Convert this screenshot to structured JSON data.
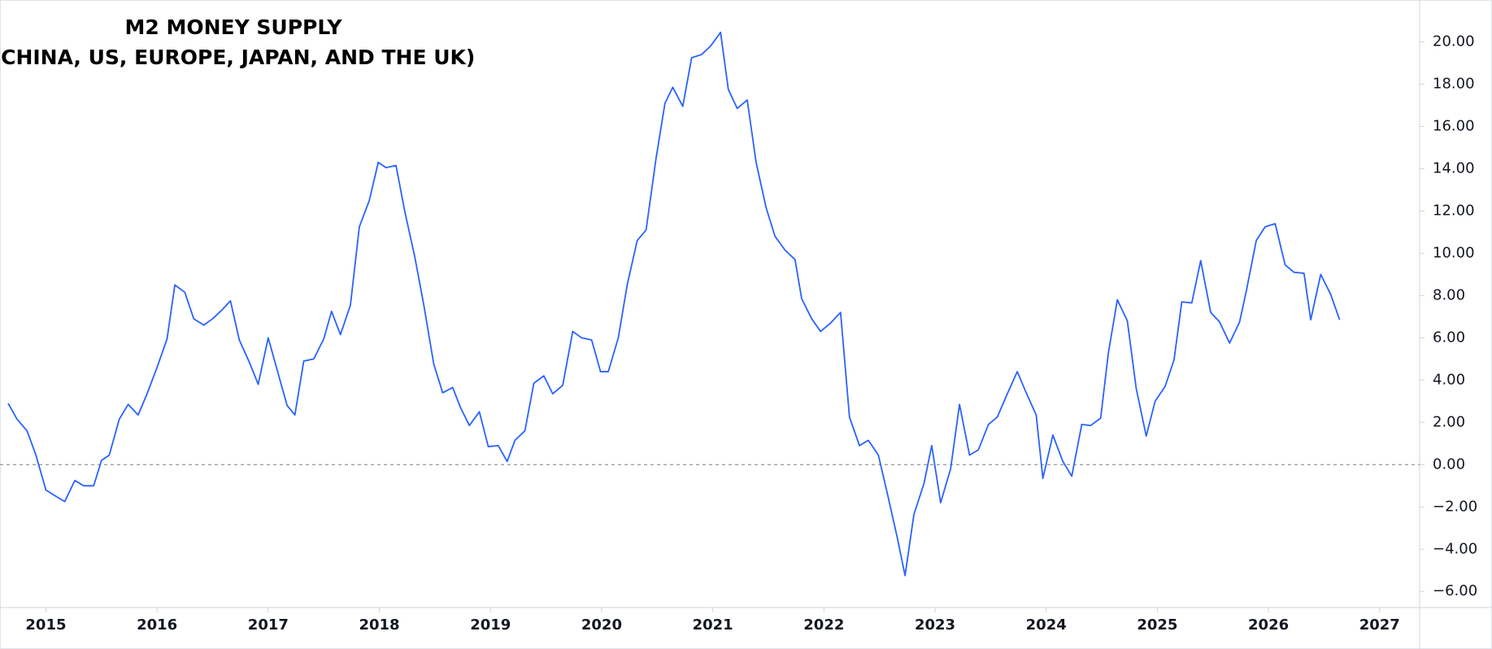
{
  "chart_data": {
    "type": "line",
    "title": "M2 MONEY SUPPLY",
    "subtitle": "(CHINA, US, EUROPE, JAPAN, AND THE UK)",
    "x": [
      2014.66,
      2014.74,
      2014.83,
      2014.91,
      2015.0,
      2015.09,
      2015.17,
      2015.26,
      2015.34,
      2015.43,
      2015.5,
      2015.57,
      2015.66,
      2015.74,
      2015.83,
      2015.91,
      2016.0,
      2016.09,
      2016.16,
      2016.25,
      2016.33,
      2016.42,
      2016.5,
      2016.59,
      2016.66,
      2016.74,
      2016.83,
      2016.91,
      2017.0,
      2017.09,
      2017.17,
      2017.24,
      2017.32,
      2017.41,
      2017.5,
      2017.57,
      2017.65,
      2017.74,
      2017.82,
      2017.91,
      2017.99,
      2018.06,
      2018.15,
      2018.23,
      2018.32,
      2018.4,
      2018.49,
      2018.57,
      2018.66,
      2018.73,
      2018.81,
      2018.9,
      2018.98,
      2019.07,
      2019.15,
      2019.22,
      2019.31,
      2019.39,
      2019.48,
      2019.56,
      2019.65,
      2019.74,
      2019.82,
      2019.91,
      2019.99,
      2020.06,
      2020.15,
      2020.23,
      2020.32,
      2020.4,
      2020.49,
      2020.57,
      2020.64,
      2020.73,
      2020.81,
      2020.9,
      2020.98,
      2021.07,
      2021.14,
      2021.22,
      2021.31,
      2021.39,
      2021.48,
      2021.56,
      2021.65,
      2021.74,
      2021.8,
      2021.89,
      2021.97,
      2022.06,
      2022.15,
      2022.23,
      2022.32,
      2022.4,
      2022.49,
      2022.57,
      2022.66,
      2022.73,
      2022.81,
      2022.9,
      2022.97,
      2023.05,
      2023.14,
      2023.22,
      2023.31,
      2023.39,
      2023.48,
      2023.56,
      2023.65,
      2023.74,
      2023.82,
      2023.91,
      2023.97,
      2024.06,
      2024.15,
      2024.23,
      2024.32,
      2024.4,
      2024.49,
      2024.56,
      2024.64,
      2024.73,
      2024.81,
      2024.9,
      2024.98,
      2025.07,
      2025.15,
      2025.22,
      2025.31,
      2025.39,
      2025.48,
      2025.56,
      2025.65,
      2025.74,
      2025.8,
      2025.89,
      2025.97,
      2026.06,
      2026.15,
      2026.23,
      2026.32,
      2026.38,
      2026.47,
      2026.56,
      2026.64
    ],
    "series": [
      {
        "color": "#2962ff",
        "values": [
          2.9,
          2.15,
          1.6,
          0.45,
          -1.2,
          -1.5,
          -1.75,
          -0.75,
          -1.0,
          -1.0,
          0.2,
          0.45,
          2.15,
          2.85,
          2.35,
          3.35,
          4.6,
          5.95,
          8.5,
          8.15,
          6.9,
          6.6,
          6.9,
          7.35,
          7.75,
          5.9,
          4.85,
          3.8,
          6.0,
          4.3,
          2.8,
          2.35,
          4.9,
          5.0,
          5.95,
          7.25,
          6.15,
          7.55,
          11.25,
          12.5,
          14.3,
          14.05,
          14.15,
          11.95,
          9.8,
          7.55,
          4.75,
          3.4,
          3.65,
          2.7,
          1.85,
          2.5,
          0.85,
          0.9,
          0.15,
          1.15,
          1.6,
          3.85,
          4.2,
          3.35,
          3.75,
          6.3,
          6.0,
          5.9,
          4.4,
          4.4,
          6.0,
          8.5,
          10.6,
          11.1,
          14.5,
          17.1,
          17.85,
          16.95,
          19.25,
          19.4,
          19.8,
          20.45,
          17.75,
          16.85,
          17.25,
          14.3,
          12.15,
          10.8,
          10.15,
          9.7,
          7.85,
          6.9,
          6.3,
          6.7,
          7.2,
          2.25,
          0.9,
          1.15,
          0.45,
          -1.35,
          -3.45,
          -5.25,
          -2.35,
          -0.9,
          0.9,
          -1.8,
          -0.2,
          2.85,
          0.45,
          0.7,
          1.9,
          2.25,
          3.35,
          4.4,
          3.4,
          2.35,
          -0.65,
          1.4,
          0.15,
          -0.55,
          1.9,
          1.85,
          2.2,
          5.3,
          7.8,
          6.8,
          3.6,
          1.35,
          3.0,
          3.7,
          4.95,
          7.7,
          7.65,
          9.65,
          7.2,
          6.75,
          5.75,
          6.75,
          8.2,
          10.6,
          11.25,
          11.4,
          9.45,
          9.1,
          9.05,
          6.85,
          9.0,
          8.05,
          6.85
        ]
      }
    ],
    "xlim": [
      2014.66,
      2027.36
    ],
    "xticks": [
      2015,
      2016,
      2017,
      2018,
      2019,
      2020,
      2021,
      2022,
      2023,
      2024,
      2025,
      2026,
      2027
    ],
    "ylim": [
      -6.76,
      21.98
    ],
    "yticks": [
      {
        "value": 20,
        "label": "20.00"
      },
      {
        "value": 18,
        "label": "18.00"
      },
      {
        "value": 16,
        "label": "16.00"
      },
      {
        "value": 14,
        "label": "14.00"
      },
      {
        "value": 12,
        "label": "12.00"
      },
      {
        "value": 10,
        "label": "10.00"
      },
      {
        "value": 8,
        "label": "8.00"
      },
      {
        "value": 6,
        "label": "6.00"
      },
      {
        "value": 4,
        "label": "4.00"
      },
      {
        "value": 2,
        "label": "2.00"
      },
      {
        "value": 0,
        "label": "0.00"
      },
      {
        "value": -2,
        "label": "−2.00"
      },
      {
        "value": -4,
        "label": "−4.00"
      },
      {
        "value": -6,
        "label": "−6.00"
      }
    ],
    "zero_line": true
  }
}
